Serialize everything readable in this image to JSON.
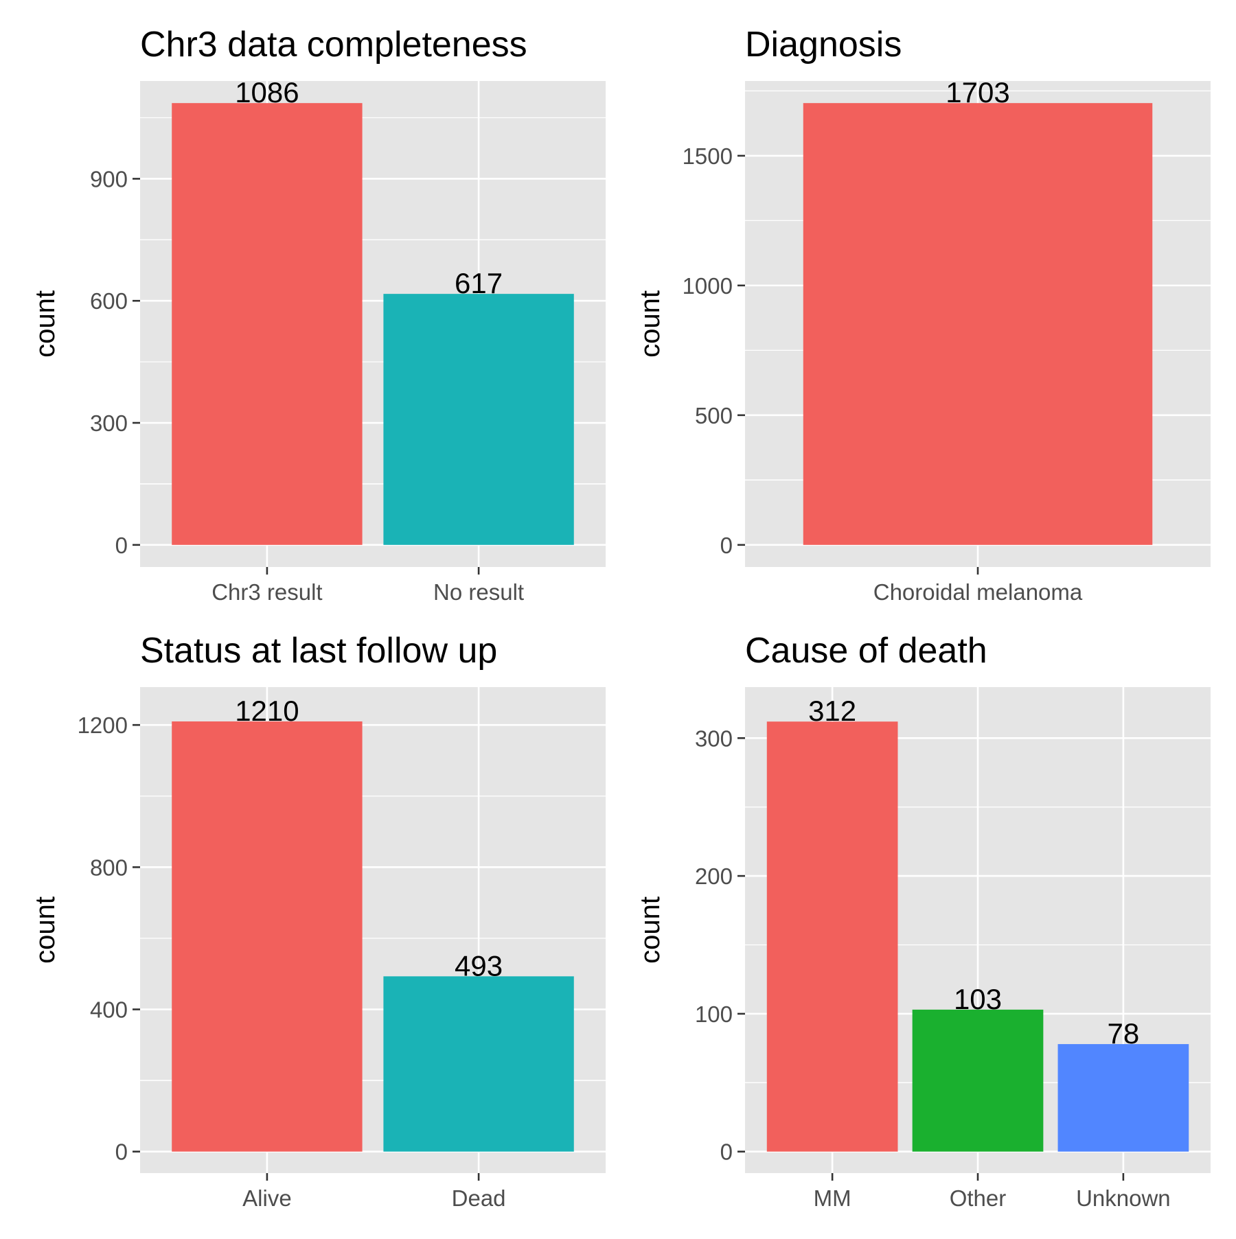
{
  "colors": {
    "panel_bg": "#E5E5E5",
    "grid": "#FFFFFF",
    "tick": "#333333",
    "series_palette": [
      "#F2605C",
      "#1AB3B6",
      "#1AB02F",
      "#5186FF"
    ]
  },
  "chart_data": [
    {
      "type": "bar",
      "title": "Chr3 data completeness",
      "xlabel": "",
      "ylabel": "count",
      "categories": [
        "Chr3 result",
        "No result"
      ],
      "values": [
        1086,
        617
      ],
      "bar_colors": [
        "#F2605C",
        "#1AB3B6"
      ],
      "ylim": [
        -54.3,
        1140.3
      ],
      "yticks": [
        0,
        300,
        600,
        900
      ],
      "grid": true,
      "legend": "none",
      "data_labels": true
    },
    {
      "type": "bar",
      "title": "Diagnosis",
      "xlabel": "",
      "ylabel": "count",
      "categories": [
        "Choroidal melanoma"
      ],
      "values": [
        1703
      ],
      "bar_colors": [
        "#F2605C"
      ],
      "ylim": [
        -85.15,
        1788.15
      ],
      "yticks": [
        0,
        500,
        1000,
        1500
      ],
      "grid": true,
      "legend": "none",
      "data_labels": true
    },
    {
      "type": "bar",
      "title": "Status at last follow up",
      "xlabel": "",
      "ylabel": "count",
      "categories": [
        "Alive",
        "Dead"
      ],
      "values": [
        1210,
        493
      ],
      "bar_colors": [
        "#F2605C",
        "#1AB3B6"
      ],
      "ylim": [
        -60.5,
        1306.5
      ],
      "yticks": [
        0,
        400,
        800,
        1200
      ],
      "grid": true,
      "legend": "none",
      "data_labels": true
    },
    {
      "type": "bar",
      "title": "Cause of death",
      "xlabel": "",
      "ylabel": "count",
      "categories": [
        "MM",
        "Other",
        "Unknown"
      ],
      "values": [
        312,
        103,
        78
      ],
      "bar_colors": [
        "#F2605C",
        "#1AB02F",
        "#5186FF"
      ],
      "ylim": [
        -15.6,
        337.0
      ],
      "yticks": [
        0,
        100,
        200,
        300
      ],
      "grid": true,
      "legend": "none",
      "data_labels": true
    }
  ]
}
